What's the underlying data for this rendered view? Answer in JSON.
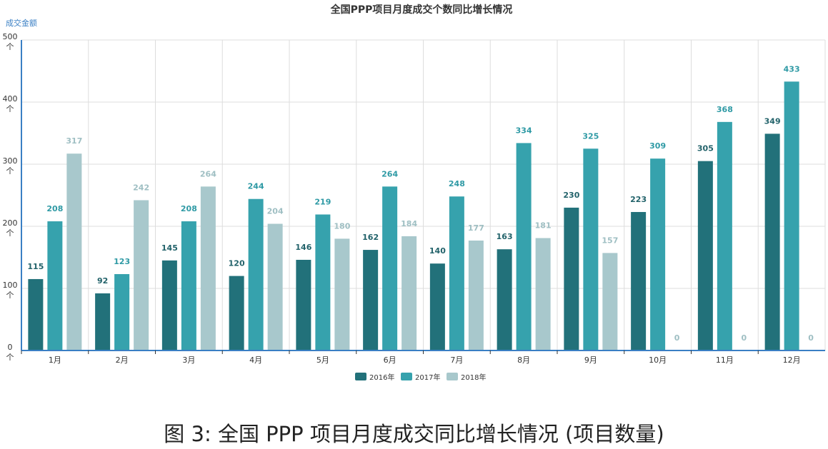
{
  "chart_data": {
    "type": "bar",
    "title": "全国PPP项目月度成交个数同比增长情况",
    "ylabel": "成交金额",
    "ytick_unit": "个",
    "ylim": [
      0,
      500
    ],
    "yticks": [
      0,
      100,
      200,
      300,
      400,
      500
    ],
    "grid": true,
    "legend_position": "bottom",
    "categories": [
      "1月",
      "2月",
      "3月",
      "4月",
      "5月",
      "6月",
      "7月",
      "8月",
      "9月",
      "10月",
      "11月",
      "12月"
    ],
    "series": [
      {
        "name": "2016年",
        "color": "#22717a",
        "values": [
          115,
          92,
          145,
          120,
          146,
          162,
          140,
          163,
          230,
          223,
          305,
          349
        ]
      },
      {
        "name": "2017年",
        "color": "#36a2ad",
        "values": [
          208,
          123,
          208,
          244,
          219,
          264,
          248,
          334,
          325,
          309,
          368,
          433
        ]
      },
      {
        "name": "2018年",
        "color": "#a8c8cc",
        "values": [
          317,
          242,
          264,
          204,
          180,
          184,
          177,
          181,
          157,
          0,
          0,
          0
        ]
      }
    ]
  },
  "caption": "图 3:  全国 PPP 项目月度成交同比增长情况 (项目数量)"
}
